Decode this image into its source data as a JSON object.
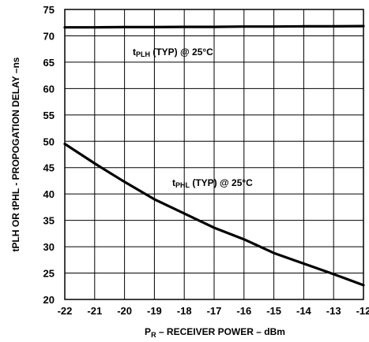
{
  "chart_data": {
    "type": "line",
    "title": "",
    "xlabel_main": "P",
    "xlabel_sub": "R",
    "xlabel_rest": " – RECEIVER POWER – dBm",
    "ylabel": "tPLH OR tPHL - PROPOGATION DELAY –ns",
    "xlim": [
      -22,
      -12
    ],
    "ylim": [
      20,
      75
    ],
    "x_ticks": [
      "-22",
      "-21",
      "-20",
      "-19",
      "-18",
      "-17",
      "-16",
      "-15",
      "-14",
      "-13",
      "-12"
    ],
    "y_ticks": [
      "20",
      "25",
      "30",
      "35",
      "40",
      "45",
      "50",
      "55",
      "60",
      "65",
      "70",
      "75"
    ],
    "grid": true,
    "series": [
      {
        "name": "tPLH (TYP) @ 25°C",
        "name_prefix": "t",
        "name_sub": "PLH",
        "name_suffix": " (TYP) @ 25°C",
        "x": [
          -22,
          -21,
          -20,
          -19,
          -18,
          -17,
          -16,
          -15,
          -14,
          -13,
          -12
        ],
        "y": [
          71.6,
          71.6,
          71.65,
          71.65,
          71.7,
          71.7,
          71.75,
          71.75,
          71.8,
          71.8,
          71.85
        ]
      },
      {
        "name": "tPHL (TYP) @ 25°C",
        "name_prefix": "t",
        "name_sub": "PHL",
        "name_suffix": " (TYP) @ 25°C",
        "x": [
          -22,
          -21,
          -20,
          -19,
          -18,
          -17,
          -16,
          -15,
          -14,
          -13,
          -12
        ],
        "y": [
          49.5,
          45.8,
          42.3,
          39.0,
          36.3,
          33.6,
          31.4,
          28.8,
          26.8,
          24.8,
          22.7
        ]
      }
    ]
  }
}
